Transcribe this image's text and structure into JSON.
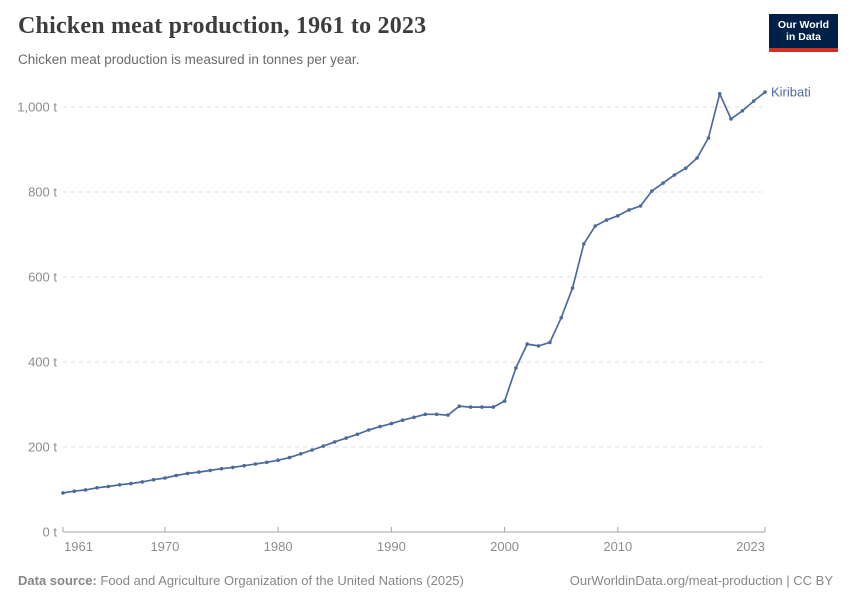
{
  "header": {
    "title": "Chicken meat production, 1961 to 2023",
    "subtitle": "Chicken meat production is measured in tonnes per year."
  },
  "logo": {
    "line1": "Our World",
    "line2": "in Data",
    "bg": "#002147",
    "accent": "#d4301f"
  },
  "chart_data": {
    "type": "line",
    "title": "Chicken meat production, 1961 to 2023",
    "xlabel": "",
    "ylabel": "tonnes per year",
    "unit": "t",
    "grid": true,
    "legend_position": "end-of-line-label",
    "xlim": [
      1961,
      2023
    ],
    "ylim": [
      0,
      1040
    ],
    "xticks": [
      1961,
      1970,
      1980,
      1990,
      2000,
      2010,
      2023
    ],
    "xtick_labels": [
      "1961",
      "1970",
      "1980",
      "1990",
      "2000",
      "2010",
      "2023"
    ],
    "yticks": [
      0,
      200,
      400,
      600,
      800,
      1000
    ],
    "ytick_labels": [
      "0 t",
      "200 t",
      "400 t",
      "600 t",
      "800 t",
      "1,000 t"
    ],
    "series": [
      {
        "name": "Kiribati",
        "color": "#4C6A9C",
        "x": [
          1961,
          1962,
          1963,
          1964,
          1965,
          1966,
          1967,
          1968,
          1969,
          1970,
          1971,
          1972,
          1973,
          1974,
          1975,
          1976,
          1977,
          1978,
          1979,
          1980,
          1981,
          1982,
          1983,
          1984,
          1985,
          1986,
          1987,
          1988,
          1989,
          1990,
          1991,
          1992,
          1993,
          1994,
          1995,
          1996,
          1997,
          1998,
          1999,
          2000,
          2001,
          2002,
          2003,
          2004,
          2005,
          2006,
          2007,
          2008,
          2009,
          2010,
          2011,
          2012,
          2013,
          2014,
          2015,
          2016,
          2017,
          2018,
          2019,
          2020,
          2021,
          2022,
          2023
        ],
        "values": [
          92,
          96,
          99,
          104,
          107,
          111,
          114,
          118,
          123,
          127,
          133,
          138,
          141,
          145,
          149,
          152,
          156,
          160,
          164,
          169,
          175,
          184,
          193,
          202,
          212,
          221,
          230,
          240,
          248,
          255,
          263,
          270,
          277,
          277,
          275,
          296,
          294,
          294,
          294,
          308,
          386,
          442,
          438,
          446,
          504,
          574,
          678,
          720,
          734,
          744,
          758,
          767,
          802,
          821,
          840,
          856,
          880,
          927,
          1031,
          972,
          991,
          1014,
          1035
        ]
      }
    ],
    "colors": {
      "gridline": "#dcdcdc",
      "axis": "#a6a6a6",
      "tick_text": "#8d8d8d"
    }
  },
  "footer": {
    "source_label": "Data source:",
    "source_text": "Food and Agriculture Organization of the United Nations (2025)",
    "link": "OurWorldinData.org/meat-production | CC BY"
  }
}
